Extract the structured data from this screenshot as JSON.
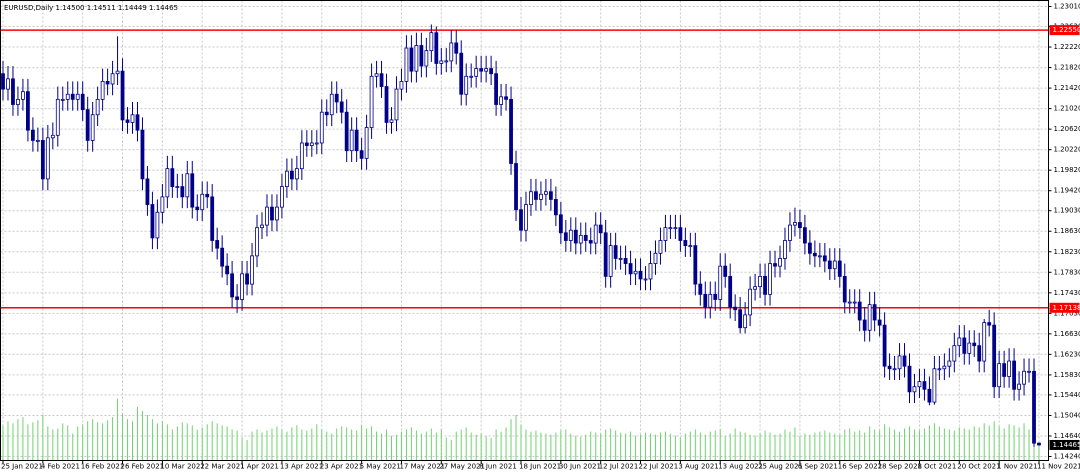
{
  "chart_data": {
    "type": "candlestick",
    "title": "EURUSD,Daily  1.14500 1.14511 1.14449 1.14465",
    "color": "#00008b",
    "up_fill": "#ffffff",
    "volume_color": "#6fd36f",
    "grid": true,
    "ylim": [
      1.14162,
      1.23127
    ],
    "yticks": [
      {
        "value": 1.2301,
        "label": "1.23010"
      },
      {
        "value": 1.2262,
        "label": "1.22620"
      },
      {
        "value": 1.2222,
        "label": "1.22220"
      },
      {
        "value": 1.2182,
        "label": "1.21820"
      },
      {
        "value": 1.2142,
        "label": "1.21420"
      },
      {
        "value": 1.2102,
        "label": "1.21020"
      },
      {
        "value": 1.2062,
        "label": "1.20620"
      },
      {
        "value": 1.2022,
        "label": "1.20220"
      },
      {
        "value": 1.1982,
        "label": "1.19820"
      },
      {
        "value": 1.1942,
        "label": "1.19420"
      },
      {
        "value": 1.1903,
        "label": "1.19030"
      },
      {
        "value": 1.1863,
        "label": "1.18630"
      },
      {
        "value": 1.1823,
        "label": "1.18230"
      },
      {
        "value": 1.1783,
        "label": "1.17830"
      },
      {
        "value": 1.1743,
        "label": "1.17430"
      },
      {
        "value": 1.1703,
        "label": "1.17030"
      },
      {
        "value": 1.1663,
        "label": "1.16630"
      },
      {
        "value": 1.1623,
        "label": "1.16230"
      },
      {
        "value": 1.1583,
        "label": "1.15830"
      },
      {
        "value": 1.1544,
        "label": "1.15440"
      },
      {
        "value": 1.1504,
        "label": "1.15040"
      },
      {
        "value": 1.1464,
        "label": "1.14640"
      },
      {
        "value": 1.1424,
        "label": "1.14240"
      }
    ],
    "hlines": [
      {
        "value": 1.2255,
        "label": "1.22550",
        "color": "#ff0000"
      },
      {
        "value": 1.17138,
        "label": "1.17138",
        "color": "#ff0000"
      }
    ],
    "last_price": {
      "value": 1.14465,
      "label": "1.14465",
      "color": "#000000"
    },
    "categories": [
      "25 Jan 2021",
      null,
      null,
      null,
      null,
      null,
      null,
      null,
      "4 Feb 2021",
      null,
      null,
      null,
      null,
      null,
      null,
      null,
      "16 Feb 2021",
      null,
      null,
      null,
      null,
      null,
      null,
      null,
      "26 Feb 2021",
      null,
      null,
      null,
      null,
      null,
      null,
      null,
      "10 Mar 2021",
      null,
      null,
      null,
      null,
      null,
      null,
      null,
      "22 Mar 2021",
      null,
      null,
      null,
      null,
      null,
      null,
      null,
      "1 Apr 2021",
      null,
      null,
      null,
      null,
      null,
      null,
      null,
      "13 Apr 2021",
      null,
      null,
      null,
      null,
      null,
      null,
      null,
      "23 Apr 2021",
      null,
      null,
      null,
      null,
      null,
      null,
      null,
      "5 May 2021",
      null,
      null,
      null,
      null,
      null,
      null,
      null,
      "17 May 2021",
      null,
      null,
      null,
      null,
      null,
      null,
      null,
      "27 May 2021",
      null,
      null,
      null,
      null,
      null,
      null,
      null,
      "8 Jun 2021",
      null,
      null,
      null,
      null,
      null,
      null,
      null,
      "18 Jun 2021",
      null,
      null,
      null,
      null,
      null,
      null,
      null,
      "30 Jun 2021",
      null,
      null,
      null,
      null,
      null,
      null,
      null,
      "12 Jul 2021",
      null,
      null,
      null,
      null,
      null,
      null,
      null,
      "22 Jul 2021",
      null,
      null,
      null,
      null,
      null,
      null,
      null,
      "3 Aug 2021",
      null,
      null,
      null,
      null,
      null,
      null,
      null,
      "13 Aug 2021",
      null,
      null,
      null,
      null,
      null,
      null,
      null,
      "25 Aug 2021",
      null,
      null,
      null,
      null,
      null,
      null,
      null,
      "6 Sep 2021",
      null,
      null,
      null,
      null,
      null,
      null,
      null,
      "16 Sep 2021",
      null,
      null,
      null,
      null,
      null,
      null,
      null,
      "28 Sep 2021",
      null,
      null,
      null,
      null,
      null,
      null,
      null,
      "8 Oct 2021",
      null,
      null,
      null,
      null,
      null,
      null,
      null,
      "20 Oct 2021",
      null,
      null,
      null,
      null,
      null,
      null,
      null,
      "1 Nov 2021",
      null,
      null,
      null,
      null,
      null,
      null,
      null,
      "11 Nov 2021"
    ],
    "open": [
      1.217,
      1.214,
      1.216,
      1.211,
      1.212,
      1.2135,
      1.206,
      1.204,
      1.204,
      1.1965,
      1.2045,
      1.205,
      1.212,
      1.212,
      1.213,
      1.212,
      1.213,
      1.21,
      1.204,
      1.209,
      1.212,
      1.2155,
      1.215,
      1.217,
      1.2175,
      1.208,
      1.2075,
      1.209,
      1.206,
      1.1965,
      1.1915,
      1.185,
      1.19,
      1.193,
      1.1985,
      1.195,
      1.195,
      1.193,
      1.1975,
      1.191,
      1.1905,
      1.1935,
      1.193,
      1.1845,
      1.183,
      1.1795,
      1.178,
      1.1735,
      1.173,
      1.178,
      1.176,
      1.1815,
      1.187,
      1.1875,
      1.191,
      1.1885,
      1.191,
      1.195,
      1.198,
      1.1965,
      1.1985,
      1.2035,
      1.203,
      1.2035,
      1.2035,
      1.2095,
      1.209,
      1.213,
      1.2115,
      1.2095,
      1.202,
      1.206,
      1.202,
      1.2005,
      1.2065,
      1.2165,
      1.217,
      1.2145,
      1.2075,
      1.208,
      1.214,
      1.2155,
      1.222,
      1.2175,
      1.2225,
      1.2185,
      1.2215,
      1.225,
      1.219,
      1.2195,
      1.2195,
      1.223,
      1.221,
      1.213,
      1.2165,
      1.2165,
      1.218,
      1.2175,
      1.218,
      1.217,
      1.211,
      1.2125,
      1.212,
      1.1995,
      1.1905,
      1.1865,
      1.1915,
      1.194,
      1.1925,
      1.1935,
      1.194,
      1.1925,
      1.1895,
      1.186,
      1.1845,
      1.1865,
      1.184,
      1.1855,
      1.1845,
      1.184,
      1.1875,
      1.186,
      1.1775,
      1.1835,
      1.181,
      1.181,
      1.18,
      1.178,
      1.1785,
      1.177,
      1.177,
      1.18,
      1.182,
      1.1845,
      1.187,
      1.187,
      1.187,
      1.1845,
      1.1835,
      1.1835,
      1.176,
      1.174,
      1.1715,
      1.174,
      1.173,
      1.1795,
      1.1775,
      1.1715,
      1.171,
      1.1675,
      1.17,
      1.175,
      1.1755,
      1.1775,
      1.174,
      1.18,
      1.1795,
      1.181,
      1.1845,
      1.1875,
      1.188,
      1.187,
      1.184,
      1.182,
      1.1815,
      1.1815,
      1.1805,
      1.179,
      1.1805,
      1.1775,
      1.1725,
      1.1725,
      1.1725,
      1.169,
      1.167,
      1.172,
      1.169,
      1.168,
      1.16,
      1.1595,
      1.1595,
      1.162,
      1.16,
      1.155,
      1.156,
      1.157,
      1.1555,
      1.153,
      1.1595,
      1.1595,
      1.16,
      1.161,
      1.164,
      1.1655,
      1.1625,
      1.1645,
      1.164,
      1.161,
      1.1685,
      1.168,
      1.156,
      1.1605,
      1.158,
      1.161,
      1.1555,
      1.1565,
      1.159,
      1.159,
      1.145
    ],
    "high": [
      1.2195,
      1.2185,
      1.2185,
      1.2145,
      1.216,
      1.216,
      1.2085,
      1.2065,
      1.2065,
      1.207,
      1.2075,
      1.2145,
      1.2145,
      1.2155,
      1.2155,
      1.2155,
      1.2155,
      1.2125,
      1.2115,
      1.2145,
      1.218,
      1.218,
      1.2195,
      1.2243,
      1.22,
      1.2105,
      1.2115,
      1.2115,
      1.2085,
      1.199,
      1.194,
      1.1925,
      1.1955,
      1.201,
      1.201,
      1.1975,
      1.1975,
      1.2,
      1.2,
      1.1935,
      1.196,
      1.196,
      1.1955,
      1.187,
      1.1855,
      1.182,
      1.1805,
      1.176,
      1.1805,
      1.1805,
      1.184,
      1.1895,
      1.19,
      1.1935,
      1.1935,
      1.1935,
      1.1975,
      1.2005,
      1.2005,
      1.201,
      1.206,
      1.206,
      1.206,
      1.206,
      1.212,
      1.212,
      1.2155,
      1.2155,
      1.214,
      1.212,
      1.2085,
      1.2085,
      1.2045,
      1.209,
      1.219,
      1.2195,
      1.2195,
      1.217,
      1.2105,
      1.2165,
      1.218,
      1.2245,
      1.2245,
      1.225,
      1.225,
      1.224,
      1.2266,
      1.2262,
      1.222,
      1.222,
      1.2255,
      1.2255,
      1.2235,
      1.219,
      1.219,
      1.2205,
      1.2205,
      1.2205,
      1.2205,
      1.2195,
      1.215,
      1.215,
      1.2145,
      1.202,
      1.193,
      1.194,
      1.1965,
      1.1965,
      1.196,
      1.1965,
      1.1965,
      1.195,
      1.192,
      1.1885,
      1.189,
      1.189,
      1.188,
      1.188,
      1.187,
      1.19,
      1.19,
      1.1885,
      1.186,
      1.186,
      1.1835,
      1.1835,
      1.1825,
      1.181,
      1.181,
      1.1795,
      1.1825,
      1.1845,
      1.187,
      1.1895,
      1.1895,
      1.1895,
      1.1895,
      1.187,
      1.186,
      1.186,
      1.1785,
      1.1765,
      1.1765,
      1.1765,
      1.182,
      1.182,
      1.18,
      1.174,
      1.1735,
      1.1725,
      1.1775,
      1.178,
      1.18,
      1.18,
      1.1825,
      1.1825,
      1.1835,
      1.187,
      1.19,
      1.1909,
      1.1905,
      1.1895,
      1.1865,
      1.1845,
      1.184,
      1.184,
      1.183,
      1.183,
      1.183,
      1.18,
      1.175,
      1.175,
      1.175,
      1.1715,
      1.1745,
      1.1745,
      1.1715,
      1.1705,
      1.1625,
      1.162,
      1.1645,
      1.1645,
      1.1625,
      1.1585,
      1.1595,
      1.1595,
      1.158,
      1.162,
      1.162,
      1.1625,
      1.1635,
      1.1665,
      1.168,
      1.168,
      1.167,
      1.167,
      1.1665,
      1.1692,
      1.171,
      1.1705,
      1.163,
      1.163,
      1.1635,
      1.1635,
      1.159,
      1.1615,
      1.1615,
      1.1615,
      1.14511
    ],
    "low": [
      1.2118,
      1.2118,
      1.2088,
      1.2088,
      1.2098,
      1.2038,
      1.2018,
      1.2018,
      1.1943,
      1.1943,
      1.2023,
      1.2028,
      1.2098,
      1.2098,
      1.2098,
      1.2098,
      1.2078,
      1.2018,
      1.2018,
      1.2068,
      1.2098,
      1.2128,
      1.2128,
      1.2148,
      1.2058,
      1.2053,
      1.2053,
      1.2038,
      1.1943,
      1.1893,
      1.1828,
      1.1828,
      1.1878,
      1.1908,
      1.1928,
      1.1928,
      1.1908,
      1.1908,
      1.1888,
      1.1883,
      1.1883,
      1.1908,
      1.1823,
      1.1808,
      1.1773,
      1.1758,
      1.1713,
      1.1704,
      1.1708,
      1.1738,
      1.1738,
      1.1793,
      1.1848,
      1.1853,
      1.1863,
      1.1863,
      1.1888,
      1.1928,
      1.1943,
      1.1943,
      1.1963,
      1.2008,
      1.2008,
      1.2013,
      1.2013,
      1.2068,
      1.2068,
      1.2093,
      1.2073,
      1.1998,
      1.1998,
      1.1998,
      1.1983,
      1.1983,
      1.2043,
      1.2143,
      1.2123,
      1.2053,
      1.2053,
      1.2058,
      1.2118,
      1.2133,
      1.2153,
      1.2153,
      1.2163,
      1.2163,
      1.2193,
      1.2168,
      1.2168,
      1.2173,
      1.2173,
      1.2188,
      1.2108,
      1.2108,
      1.2143,
      1.2143,
      1.2153,
      1.2153,
      1.2148,
      1.2088,
      1.2088,
      1.2098,
      1.1973,
      1.1883,
      1.1843,
      1.1843,
      1.1893,
      1.1903,
      1.1903,
      1.1913,
      1.1903,
      1.1873,
      1.1838,
      1.1823,
      1.1823,
      1.1818,
      1.1818,
      1.1823,
      1.1818,
      1.1818,
      1.1838,
      1.1753,
      1.1753,
      1.1788,
      1.1788,
      1.1778,
      1.1758,
      1.1758,
      1.1748,
      1.1748,
      1.1748,
      1.1778,
      1.1798,
      1.1823,
      1.1848,
      1.1848,
      1.1823,
      1.1813,
      1.1813,
      1.1738,
      1.1718,
      1.1693,
      1.1693,
      1.1708,
      1.1708,
      1.1753,
      1.1693,
      1.1688,
      1.1664,
      1.1664,
      1.1678,
      1.1728,
      1.1733,
      1.1718,
      1.1718,
      1.1773,
      1.1773,
      1.1788,
      1.1823,
      1.1853,
      1.1848,
      1.1818,
      1.1798,
      1.1793,
      1.1793,
      1.1783,
      1.1768,
      1.1768,
      1.1753,
      1.1703,
      1.1703,
      1.1703,
      1.1668,
      1.1648,
      1.1648,
      1.1668,
      1.1658,
      1.1578,
      1.1573,
      1.1573,
      1.1573,
      1.1578,
      1.1528,
      1.1528,
      1.1538,
      1.1533,
      1.1524,
      1.1525,
      1.1573,
      1.1573,
      1.1578,
      1.1588,
      1.1618,
      1.1603,
      1.1603,
      1.1618,
      1.1588,
      1.1588,
      1.1658,
      1.1538,
      1.1538,
      1.1558,
      1.1558,
      1.1533,
      1.1533,
      1.1543,
      1.1568,
      1.1443,
      1.14449
    ],
    "close": [
      1.214,
      1.216,
      1.211,
      1.212,
      1.2135,
      1.206,
      1.204,
      1.204,
      1.1965,
      1.2045,
      1.205,
      1.212,
      1.212,
      1.213,
      1.212,
      1.213,
      1.21,
      1.204,
      1.209,
      1.212,
      1.2155,
      1.215,
      1.217,
      1.2175,
      1.208,
      1.2075,
      1.209,
      1.206,
      1.1965,
      1.1915,
      1.185,
      1.19,
      1.193,
      1.1985,
      1.195,
      1.195,
      1.193,
      1.1975,
      1.191,
      1.1905,
      1.1935,
      1.193,
      1.1845,
      1.183,
      1.1795,
      1.178,
      1.1735,
      1.173,
      1.178,
      1.176,
      1.1815,
      1.187,
      1.1875,
      1.191,
      1.1885,
      1.191,
      1.195,
      1.198,
      1.1965,
      1.1985,
      1.2035,
      1.203,
      1.2035,
      1.2035,
      1.2095,
      1.209,
      1.213,
      1.2115,
      1.2095,
      1.202,
      1.206,
      1.202,
      1.2005,
      1.2065,
      1.2165,
      1.217,
      1.2145,
      1.2075,
      1.208,
      1.214,
      1.2155,
      1.222,
      1.2175,
      1.2225,
      1.2185,
      1.2215,
      1.225,
      1.219,
      1.2195,
      1.2195,
      1.223,
      1.221,
      1.213,
      1.2165,
      1.2165,
      1.218,
      1.2175,
      1.218,
      1.217,
      1.211,
      1.2125,
      1.212,
      1.1995,
      1.1905,
      1.1865,
      1.1915,
      1.194,
      1.1925,
      1.1935,
      1.194,
      1.1925,
      1.1895,
      1.186,
      1.1845,
      1.1865,
      1.184,
      1.1855,
      1.1845,
      1.184,
      1.1875,
      1.186,
      1.1775,
      1.1835,
      1.181,
      1.181,
      1.18,
      1.178,
      1.1785,
      1.177,
      1.177,
      1.18,
      1.182,
      1.1845,
      1.187,
      1.187,
      1.187,
      1.1845,
      1.1835,
      1.1835,
      1.176,
      1.174,
      1.1715,
      1.174,
      1.173,
      1.1795,
      1.1775,
      1.1715,
      1.171,
      1.1675,
      1.17,
      1.175,
      1.1755,
      1.1775,
      1.174,
      1.18,
      1.1795,
      1.181,
      1.1845,
      1.1875,
      1.188,
      1.187,
      1.184,
      1.182,
      1.1815,
      1.1815,
      1.1805,
      1.179,
      1.1805,
      1.1775,
      1.1725,
      1.1725,
      1.1725,
      1.169,
      1.167,
      1.172,
      1.169,
      1.168,
      1.16,
      1.1595,
      1.1595,
      1.162,
      1.16,
      1.155,
      1.156,
      1.157,
      1.1555,
      1.153,
      1.1595,
      1.1595,
      1.16,
      1.161,
      1.164,
      1.1655,
      1.1625,
      1.1645,
      1.164,
      1.161,
      1.1685,
      1.168,
      1.156,
      1.1605,
      1.158,
      1.161,
      1.1555,
      1.1565,
      1.159,
      1.159,
      1.145,
      1.14465
    ],
    "volumes": [
      34,
      38,
      36,
      40,
      42,
      35,
      37,
      39,
      44,
      33,
      30,
      31,
      36,
      34,
      26,
      33,
      35,
      38,
      40,
      37,
      36,
      39,
      42,
      60,
      45,
      40,
      38,
      52,
      48,
      44,
      40,
      36,
      38,
      35,
      30,
      33,
      37,
      36,
      34,
      30,
      32,
      35,
      38,
      36,
      34,
      33,
      30,
      29,
      22,
      20,
      28,
      30,
      27,
      29,
      31,
      33,
      30,
      28,
      32,
      34,
      30,
      29,
      31,
      35,
      30,
      28,
      26,
      31,
      33,
      32,
      30,
      29,
      34,
      31,
      33,
      28,
      26,
      30,
      24,
      25,
      28,
      30,
      32,
      29,
      26,
      28,
      31,
      27,
      30,
      22,
      20,
      28,
      30,
      32,
      27,
      25,
      26,
      24,
      22,
      30,
      28,
      32,
      40,
      44,
      35,
      30,
      28,
      29,
      27,
      26,
      25,
      27,
      29,
      30,
      26,
      24,
      23,
      25,
      28,
      27,
      26,
      30,
      31,
      29,
      27,
      26,
      28,
      24,
      25,
      27,
      26,
      25,
      27,
      28,
      26,
      24,
      22,
      26,
      28,
      30,
      27,
      25,
      28,
      29,
      30,
      24,
      26,
      31,
      28,
      27,
      25,
      24,
      26,
      29,
      27,
      25,
      26,
      30,
      28,
      32,
      24,
      26,
      25,
      27,
      28,
      29,
      27,
      26,
      25,
      30,
      31,
      28,
      29,
      27,
      33,
      30,
      29,
      35,
      32,
      30,
      28,
      31,
      33,
      30,
      29,
      31,
      34,
      36,
      33,
      31,
      30,
      29,
      32,
      31,
      30,
      33,
      32,
      36,
      34,
      38,
      33,
      31,
      35,
      34,
      32,
      36,
      30,
      40,
      18
    ]
  }
}
